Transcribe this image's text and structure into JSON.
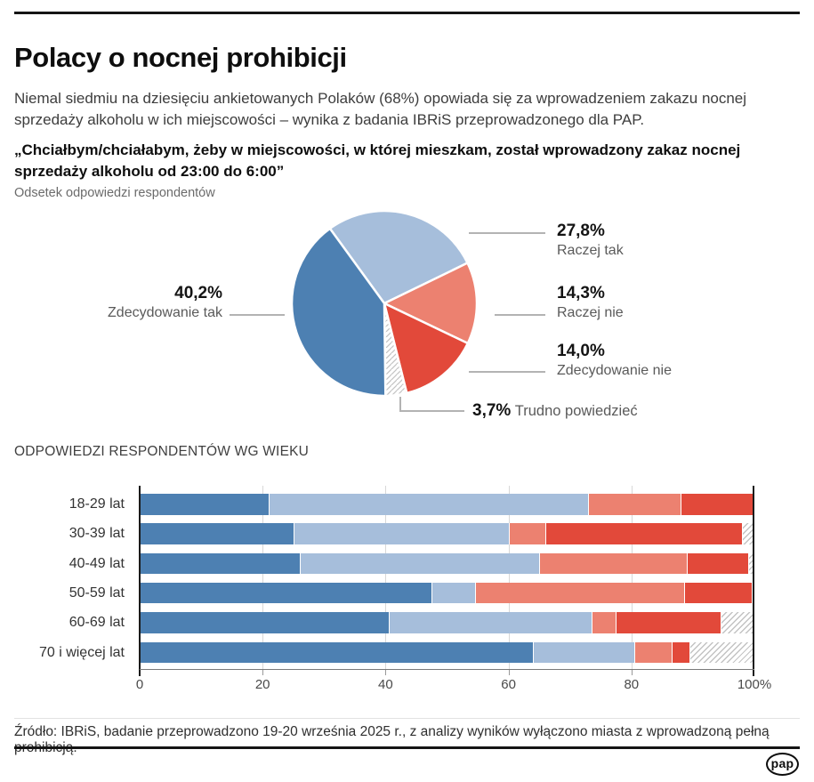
{
  "header": {
    "title": "Polacy o nocnej prohibicji",
    "lead": "Niemal siedmiu na dziesięciu ankietowanych Polaków (68%) opowiada się za wprowadzeniem zakazu nocnej sprzedaży alkoholu w ich miejscowości – wynika z badania IBRiS przeprowadzonego dla PAP.",
    "question": "„Chciałbym/chciałabym, żeby w miejscowości, w której mieszkam, został wprowadzony zakaz nocnej sprzedaży alkoholu od 23:00 do 6:00”",
    "subnote": "Odsetek odpowiedzi respondentów"
  },
  "colors": {
    "strong_yes": "#4d80b2",
    "rather_yes": "#a6bedb",
    "rather_no": "#ec8170",
    "strong_no": "#e2493a",
    "hatch_line": "#c3c3c3",
    "axis": "#1a1a1a",
    "callout_line": "#b3b3b3"
  },
  "chart_data": [
    {
      "type": "pie",
      "title": "Odsetek odpowiedzi respondentów",
      "start_angle_deg": -36,
      "slices": [
        {
          "label": "Raczej tak",
          "value": 27.8,
          "display": "27,8%",
          "color_key": "rather_yes"
        },
        {
          "label": "Raczej nie",
          "value": 14.3,
          "display": "14,3%",
          "color_key": "rather_no"
        },
        {
          "label": "Zdecydowanie nie",
          "value": 14.0,
          "display": "14,0%",
          "color_key": "strong_no"
        },
        {
          "label": "Trudno powiedzieć",
          "value": 3.7,
          "display": "3,7%",
          "color_key": "hatch"
        },
        {
          "label": "Zdecydowanie tak",
          "value": 40.2,
          "display": "40,2%",
          "color_key": "strong_yes"
        }
      ]
    },
    {
      "type": "bar",
      "stacked": true,
      "horizontal": true,
      "title": "ODPOWIEDZI RESPONDENTÓW WG WIEKU",
      "categories": [
        "18-29 lat",
        "30-39 lat",
        "40-49 lat",
        "50-59 lat",
        "60-69 lat",
        "70 i więcej lat"
      ],
      "series": [
        {
          "name": "Zdecydowanie tak",
          "color_key": "strong_yes",
          "values": [
            21,
            25,
            26,
            47.5,
            40.5,
            64
          ]
        },
        {
          "name": "Raczej tak",
          "color_key": "rather_yes",
          "values": [
            52,
            35,
            39,
            7,
            33,
            16.5
          ]
        },
        {
          "name": "Raczej nie",
          "color_key": "rather_no",
          "values": [
            15,
            6,
            24,
            34,
            4,
            6
          ]
        },
        {
          "name": "Zdecydowanie nie",
          "color_key": "strong_no",
          "values": [
            12,
            32,
            10,
            11,
            17,
            3
          ]
        },
        {
          "name": "Trudno powiedzieć",
          "color_key": "hatch",
          "values": [
            0,
            2,
            1,
            0.5,
            5.5,
            10.5
          ]
        }
      ],
      "x_ticks": [
        "0",
        "20",
        "40",
        "60",
        "80",
        "100%"
      ],
      "xlim": [
        0,
        100
      ],
      "grid": true
    }
  ],
  "footer": {
    "source": "Źródło: IBRiS, badanie przeprowadzono 19-20 września 2025 r., z analizy wyników wyłączono miasta z wprowadzoną pełną prohibicją.",
    "logo_text": "pap"
  }
}
